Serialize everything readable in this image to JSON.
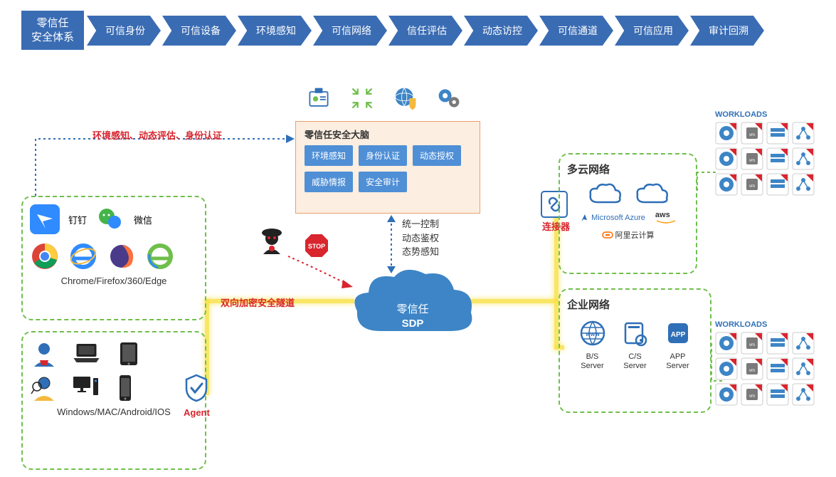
{
  "type": "network-architecture-diagram",
  "colors": {
    "primary_blue": "#3a6cb3",
    "light_blue": "#4f8fd6",
    "cloud_blue": "#3d85c6",
    "green_dash": "#6fbf4b",
    "red": "#d8252e",
    "yellow_glow": "#f9e24d",
    "brain_bg": "#fceee0",
    "brain_border": "#e8a070",
    "text": "#333333",
    "white": "#ffffff"
  },
  "nav": {
    "head_line1": "零信任",
    "head_line2": "安全体系",
    "items": [
      "可信身份",
      "可信设备",
      "环境感知",
      "可信网络",
      "信任评估",
      "动态访控",
      "可信通道",
      "可信应用",
      "审计回溯"
    ]
  },
  "brain": {
    "title": "零信任安全大脑",
    "cells": [
      "环境感知",
      "身份认证",
      "动态授权",
      "威胁情报",
      "安全审计"
    ]
  },
  "sdp": {
    "line1": "零信任",
    "line2": "SDP"
  },
  "labels": {
    "env_auth": "环境感知、动态评估、身份认证",
    "tunnel": "双向加密安全隧道",
    "connector": "连接器",
    "agent": "Agent",
    "control": "统一控制\n动态鉴权\n态势感知"
  },
  "browsers": {
    "apps": [
      {
        "name": "钉钉"
      },
      {
        "name": "微信"
      }
    ],
    "caption": "Chrome/Firefox/360/Edge"
  },
  "devices": {
    "caption": "Windows/MAC/Android/IOS"
  },
  "cloud": {
    "title": "多云网络",
    "providers": [
      "Microsoft Azure",
      "aws",
      "阿里云计算"
    ]
  },
  "enterprise": {
    "title": "企业网络",
    "servers": [
      {
        "label": "B/S\nServer",
        "icon": "www"
      },
      {
        "label": "C/S\nServer",
        "icon": "gear"
      },
      {
        "label": "APP\nServer",
        "icon": "app"
      }
    ]
  },
  "workloads": {
    "title": "WORKLOADS",
    "count": 12
  },
  "icons_top": [
    "badge",
    "compress",
    "globe-shield",
    "gears"
  ],
  "connections": [
    {
      "from": "browsers-box",
      "to": "brain-box",
      "style": "dotted-blue",
      "label": "env_auth"
    },
    {
      "from": "brain-box",
      "to": "sdp-cloud",
      "style": "dotted-blue-vertical",
      "label": "control"
    },
    {
      "from": "devices-box",
      "to": "sdp-cloud",
      "style": "yellow-tunnel",
      "label": "tunnel"
    },
    {
      "from": "sdp-cloud",
      "to": "cloud-box",
      "style": "yellow-tunnel",
      "via": "connector"
    },
    {
      "from": "sdp-cloud",
      "to": "enterprise-box",
      "style": "yellow-tunnel"
    },
    {
      "from": "hacker",
      "to": "sdp-cloud",
      "style": "dotted-red",
      "blocked": "stop"
    }
  ]
}
